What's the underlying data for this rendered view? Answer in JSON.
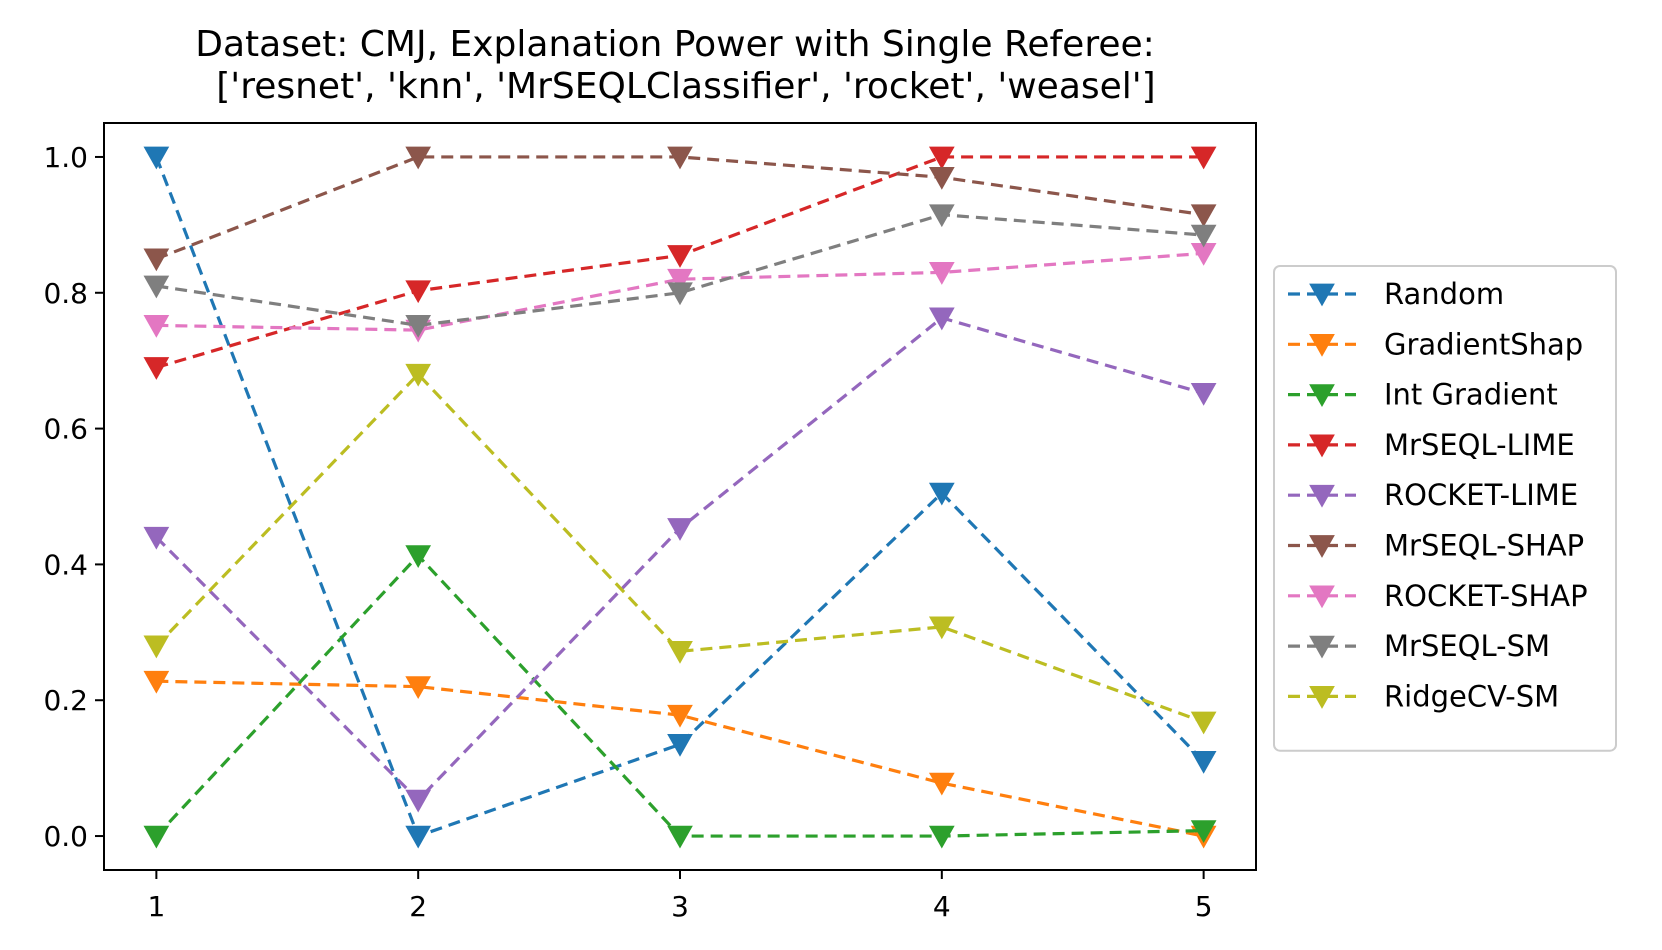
{
  "chart_data": {
    "type": "line",
    "title_lines": [
      "Dataset: CMJ, Explanation Power with Single Referee:",
      "['resnet', 'knn', 'MrSEQLClassifier', 'rocket', 'weasel']"
    ],
    "xlabel": "",
    "ylabel": "",
    "x": [
      1,
      2,
      3,
      4,
      5
    ],
    "xticks": [
      "1",
      "2",
      "3",
      "4",
      "5"
    ],
    "yticks": [
      "0.0",
      "0.2",
      "0.4",
      "0.6",
      "0.8",
      "1.0"
    ],
    "xlim": [
      0.8,
      5.2
    ],
    "ylim": [
      -0.05,
      1.05
    ],
    "line_style": "dashed",
    "marker": "triangle-down",
    "legend_position": "center-right-outside",
    "series": [
      {
        "name": "Random",
        "color": "#1f77b4",
        "values": [
          1.0,
          0.0,
          0.135,
          0.505,
          0.11
        ]
      },
      {
        "name": "GradientShap",
        "color": "#ff7f0e",
        "values": [
          0.228,
          0.22,
          0.178,
          0.078,
          0.0
        ]
      },
      {
        "name": "Int Gradient",
        "color": "#2ca02c",
        "values": [
          0.0,
          0.413,
          0.0,
          0.0,
          0.008
        ]
      },
      {
        "name": "MrSEQL-LIME",
        "color": "#d62728",
        "values": [
          0.69,
          0.803,
          0.855,
          1.0,
          1.0
        ]
      },
      {
        "name": "ROCKET-LIME",
        "color": "#9467bd",
        "values": [
          0.44,
          0.053,
          0.453,
          0.763,
          0.652
        ]
      },
      {
        "name": "MrSEQL-SHAP",
        "color": "#8c564b",
        "values": [
          0.85,
          1.0,
          1.0,
          0.97,
          0.915
        ]
      },
      {
        "name": "ROCKET-SHAP",
        "color": "#e377c2",
        "values": [
          0.752,
          0.745,
          0.82,
          0.83,
          0.858
        ]
      },
      {
        "name": "MrSEQL-SM",
        "color": "#7f7f7f",
        "values": [
          0.81,
          0.752,
          0.8,
          0.915,
          0.885
        ]
      },
      {
        "name": "RidgeCV-SM",
        "color": "#bcbd22",
        "values": [
          0.28,
          0.68,
          0.272,
          0.308,
          0.168
        ]
      }
    ]
  }
}
